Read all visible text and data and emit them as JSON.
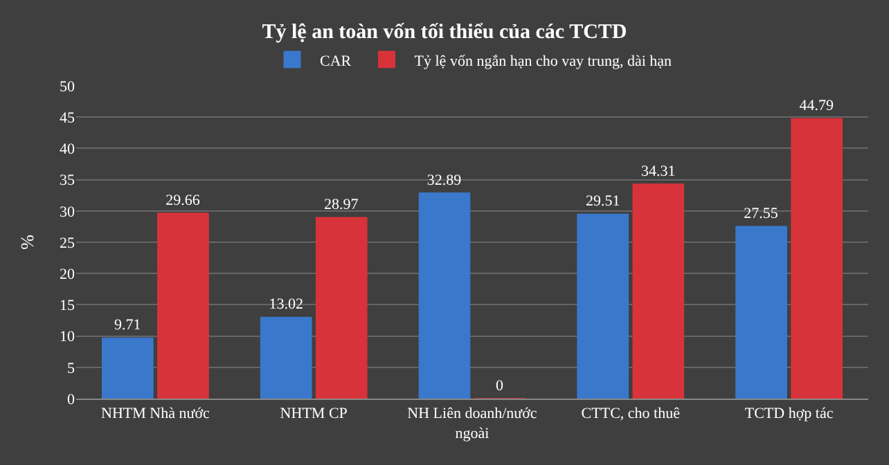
{
  "chart_data": {
    "type": "bar",
    "title": "Tỷ lệ an toàn vốn tối thiểu của các TCTD",
    "ylabel": "%",
    "categories": [
      "NHTM Nhà nước",
      "NHTM CP",
      "NH Liên doanh/nước ngoài",
      "CTTC, cho thuê",
      "TCTD hợp tác"
    ],
    "series": [
      {
        "name": "CAR",
        "color": "#3a78cc",
        "values": [
          9.71,
          13.02,
          32.89,
          29.51,
          27.55
        ]
      },
      {
        "name": "Tỷ lệ vốn ngắn hạn cho vay trung, dài hạn",
        "color": "#d8333a",
        "values": [
          29.66,
          28.97,
          0,
          34.31,
          44.79
        ]
      }
    ],
    "ylim": [
      0,
      50
    ],
    "yticks": [
      0,
      5,
      10,
      15,
      20,
      25,
      30,
      35,
      40,
      45,
      50
    ],
    "grid": "y",
    "legend": "top",
    "data_labels": true
  }
}
